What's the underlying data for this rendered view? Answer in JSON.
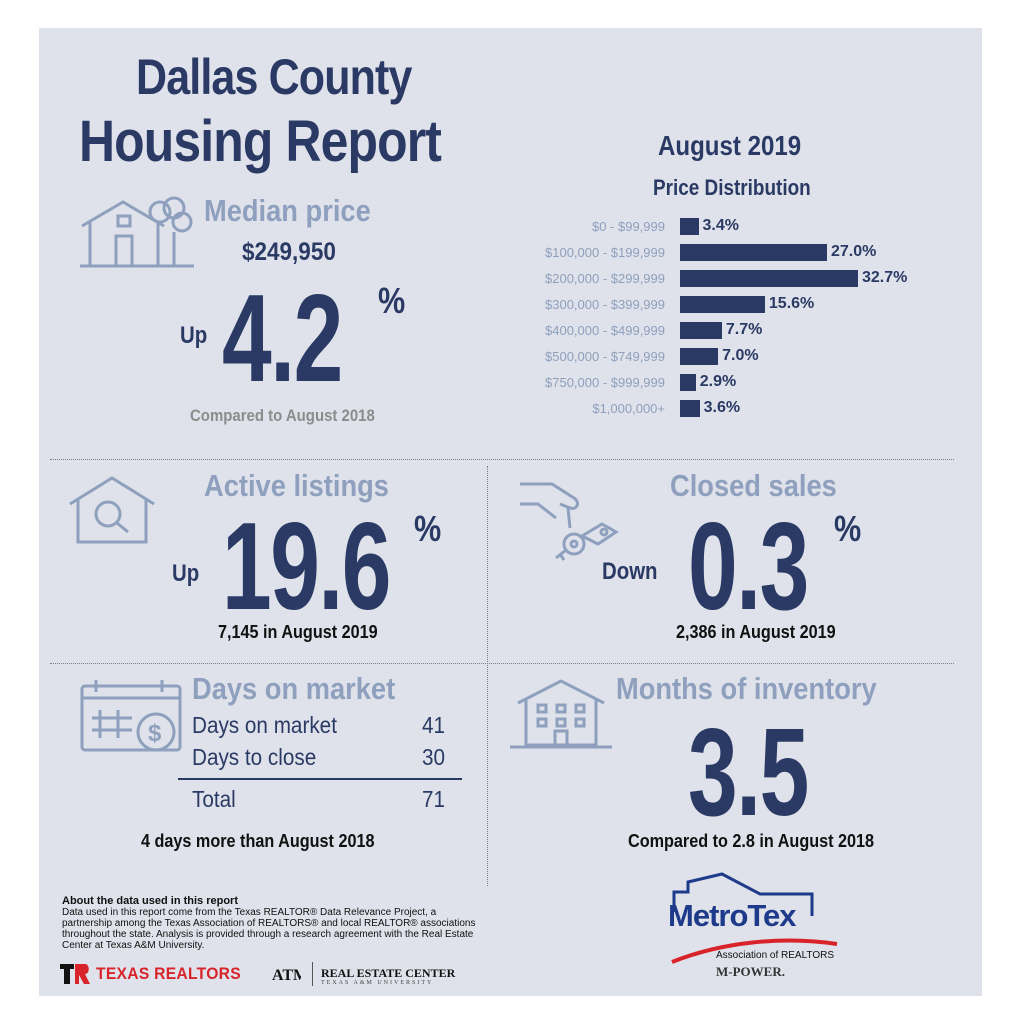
{
  "report": {
    "title_line1": "Dallas County",
    "title_line2": "Housing Report",
    "period": "August 2019"
  },
  "median_price": {
    "heading": "Median price",
    "value": "$249,950",
    "direction": "Up",
    "change": "4.2",
    "pct_symbol": "%",
    "comparison": "Compared to August 2018"
  },
  "price_distribution": {
    "title": "Price Distribution"
  },
  "chart_data": {
    "type": "bar",
    "orientation": "horizontal",
    "title": "Price Distribution",
    "categories": [
      "$0 - $99,999",
      "$100,000 - $199,999",
      "$200,000 - $299,999",
      "$300,000 - $399,999",
      "$400,000 - $499,999",
      "$500,000 - $749,999",
      "$750,000 - $999,999",
      "$1,000,000+"
    ],
    "values": [
      3.4,
      27.0,
      32.7,
      15.6,
      7.7,
      7.0,
      2.9,
      3.6
    ],
    "value_labels": [
      "3.4%",
      "27.0%",
      "32.7%",
      "15.6%",
      "7.7%",
      "7.0%",
      "2.9%",
      "3.6%"
    ],
    "bar_color": "#2a3a64"
  },
  "active_listings": {
    "heading": "Active listings",
    "direction": "Up",
    "change": "19.6",
    "pct_symbol": "%",
    "detail": "7,145 in August 2019"
  },
  "closed_sales": {
    "heading": "Closed sales",
    "direction": "Down",
    "change": "0.3",
    "pct_symbol": "%",
    "detail": "2,386 in August 2019"
  },
  "days_on_market": {
    "heading": "Days on market",
    "rows": [
      {
        "label": "Days on market",
        "value": "41"
      },
      {
        "label": "Days to close",
        "value": "30"
      }
    ],
    "total_label": "Total",
    "total_value": "71",
    "comparison": "4 days more than August 2018"
  },
  "months_inventory": {
    "heading": "Months of inventory",
    "value": "3.5",
    "comparison": "Compared to 2.8 in August 2018"
  },
  "about": {
    "title": "About the data used in this report",
    "text": "Data used in this report come from the Texas REALTOR® Data Relevance Project, a partnership among the Texas Association of REALTORS® and local REALTOR® associations throughout the state. Analysis is provided through a research agreement with the Real Estate Center at Texas A&M University."
  },
  "logos": {
    "texas_realtors": "TEXAS REALTORS",
    "real_estate_center": "REAL ESTATE CENTER",
    "real_estate_center_sub": "TEXAS A&M UNIVERSITY",
    "metrotex": "MetroTex",
    "metrotex_sub": "Association of REALTORS",
    "mpower": "M-POWER."
  },
  "colors": {
    "navy": "#2a3a64",
    "slate": "#8ea0bd",
    "panel": "#dfe2ea",
    "red": "#d8232a"
  },
  "icons": [
    "house-tree-icon",
    "house-search-icon",
    "hand-keys-icon",
    "calendar-dollar-icon",
    "building-icon"
  ]
}
